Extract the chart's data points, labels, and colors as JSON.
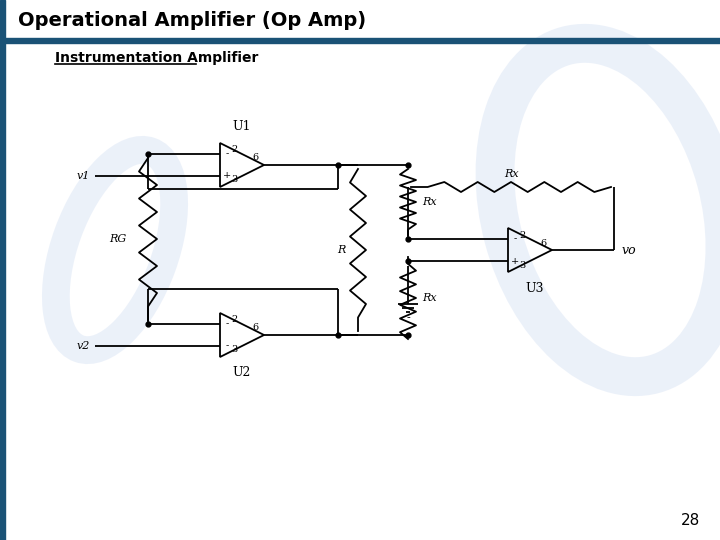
{
  "title": "Operational Amplifier (Op Amp)",
  "subtitle": "Instrumentation Amplifier",
  "page_num": "28",
  "bg_color": "#ffffff",
  "line_color": "#000000",
  "title_color": "#000000",
  "border_color": "#1a5276",
  "watermark_color": "#c8d8f0"
}
